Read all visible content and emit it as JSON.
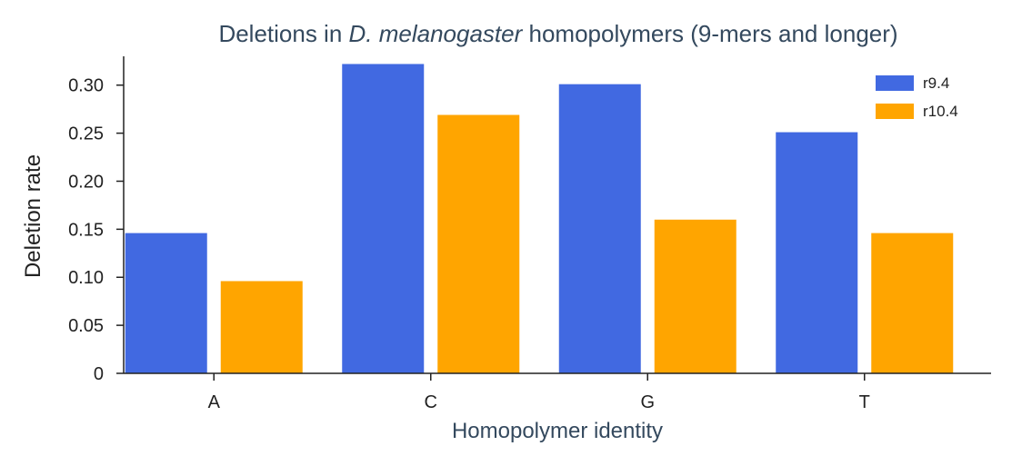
{
  "chart_data": {
    "type": "bar",
    "title_prefix": "Deletions in ",
    "title_italic": "D. melanogaster",
    "title_suffix": " homopolymers (9-mers and longer)",
    "xlabel": "Homopolymer identity",
    "ylabel": "Deletion rate",
    "categories": [
      "A",
      "C",
      "G",
      "T"
    ],
    "ylim": [
      0,
      0.33
    ],
    "yticks": [
      0,
      0.05,
      0.1,
      0.15,
      0.2,
      0.25,
      0.3
    ],
    "ytick_labels": [
      "0",
      "0.05",
      "0.10",
      "0.15",
      "0.20",
      "0.25",
      "0.30"
    ],
    "grid": false,
    "legend_position": "top-right",
    "series": [
      {
        "name": "r9.4",
        "color": "#4169e1",
        "values": [
          0.146,
          0.322,
          0.301,
          0.251
        ]
      },
      {
        "name": "r10.4",
        "color": "#ffa500",
        "values": [
          0.096,
          0.269,
          0.16,
          0.146
        ]
      }
    ]
  }
}
